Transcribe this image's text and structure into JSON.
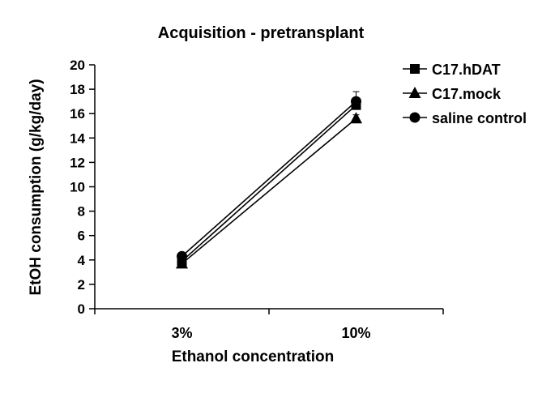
{
  "chart_data": {
    "type": "line",
    "title": "Acquisition - pretransplant",
    "xlabel": "Ethanol concentration",
    "ylabel": "EtOH consumption (g/kg/day)",
    "categories": [
      "3%",
      "10%"
    ],
    "ylim": [
      0,
      20
    ],
    "yticks": [
      0,
      2,
      4,
      6,
      8,
      10,
      12,
      14,
      16,
      18,
      20
    ],
    "grid": false,
    "legend_position": "top-right",
    "series": [
      {
        "name": "C17.hDAT",
        "marker": "square",
        "values": [
          3.9,
          16.7
        ],
        "errors": [
          0.2,
          0.4
        ]
      },
      {
        "name": "C17.mock",
        "marker": "triangle",
        "values": [
          3.7,
          15.6
        ],
        "errors": [
          0.2,
          0.3
        ]
      },
      {
        "name": "saline control",
        "marker": "circle",
        "values": [
          4.3,
          17.0
        ],
        "errors": [
          0.2,
          0.8
        ]
      }
    ],
    "colors": {
      "line": "#000000",
      "background": "#ffffff"
    }
  }
}
